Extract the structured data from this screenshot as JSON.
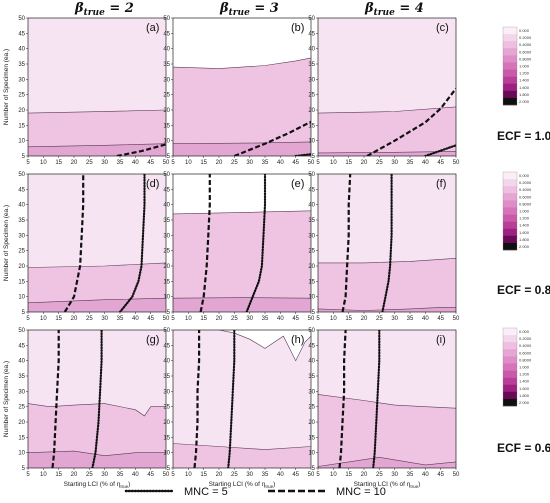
{
  "column_titles": [
    {
      "symbol": "β",
      "sub": "true",
      "eq": " = 2"
    },
    {
      "symbol": "β",
      "sub": "true",
      "eq": " = 3"
    },
    {
      "symbol": "β",
      "sub": "true",
      "eq": " = 4"
    }
  ],
  "row_labels": [
    "ECF = 1.0",
    "ECF = 0.8",
    "ECF = 0.6"
  ],
  "panel_letters": [
    "(a)",
    "(b)",
    "(c)",
    "(d)",
    "(e)",
    "(f)",
    "(g)",
    "(h)",
    "(i)"
  ],
  "axis_labels": {
    "ylabel": "Number of Specimen (ea.)",
    "xlabel_main": "Starting LCI (% of η",
    "xlabel_sub": "true",
    "xlabel_close": ")"
  },
  "x_ticks": [
    "5",
    "10",
    "15",
    "20",
    "25",
    "30",
    "35",
    "40",
    "45",
    "50"
  ],
  "y_ticks": [
    "5",
    "10",
    "15",
    "20",
    "25",
    "30",
    "35",
    "40",
    "45",
    "50"
  ],
  "colorbar_labels": [
    "0.000",
    "0.2000",
    "0.4000",
    "0.6000",
    "0.8000",
    "1.000",
    "1.200",
    "1.400",
    "1.600",
    "1.800",
    "2.000"
  ],
  "colorbar_colors": [
    "#fbeef8",
    "#f4d6ec",
    "#eebfe0",
    "#e6a6d4",
    "#de8dc7",
    "#d574ba",
    "#c95aaa",
    "#b83e98",
    "#9c2180",
    "#6a0a57",
    "#101010"
  ],
  "legend": [
    {
      "label": "MNC = 5",
      "style": "dotted"
    },
    {
      "label": "MNC = 10",
      "style": "dashed"
    }
  ],
  "chart_data": {
    "type": "contour",
    "layout": "3x3 grid",
    "x_range": [
      5,
      50
    ],
    "y_range": [
      5,
      50
    ],
    "panels": [
      {
        "letter": "(a)",
        "beta": 2,
        "ecf": 1.0,
        "contours": [
          [
            [
              5,
              19
            ],
            [
              25,
              19.4
            ],
            [
              50,
              20
            ]
          ],
          [
            [
              5,
              8
            ],
            [
              30,
              8.5
            ],
            [
              50,
              9
            ]
          ]
        ],
        "mnc5": [],
        "mnc10": [
          [
            34,
            5
          ],
          [
            42,
            6.6
          ],
          [
            50,
            8.8
          ]
        ]
      },
      {
        "letter": "(b)",
        "beta": 3,
        "ecf": 1.0,
        "contours": [
          [
            [
              5,
              34
            ],
            [
              20,
              33.5
            ],
            [
              35,
              34.5
            ],
            [
              45,
              36
            ],
            [
              50,
              37
            ]
          ],
          [
            [
              5,
              9
            ],
            [
              30,
              9.2
            ],
            [
              50,
              9.6
            ]
          ]
        ],
        "mnc5": [
          [
            45,
            5
          ],
          [
            50,
            5.6
          ]
        ],
        "mnc10": [
          [
            25,
            5
          ],
          [
            35,
            9
          ],
          [
            43,
            12.6
          ],
          [
            50,
            16.2
          ]
        ]
      },
      {
        "letter": "(c)",
        "beta": 4,
        "ecf": 1.0,
        "contours": [
          [
            [
              5,
              19
            ],
            [
              30,
              19.5
            ],
            [
              50,
              21
            ]
          ],
          [
            [
              5,
              6
            ],
            [
              30,
              6.2
            ],
            [
              50,
              6.5
            ]
          ]
        ],
        "mnc5": [
          [
            40,
            5
          ],
          [
            50,
            8.5
          ]
        ],
        "mnc10": [
          [
            21,
            5
          ],
          [
            30,
            10
          ],
          [
            40,
            16
          ],
          [
            45,
            20.5
          ],
          [
            50,
            27
          ]
        ]
      },
      {
        "letter": "(d)",
        "beta": 2,
        "ecf": 0.8,
        "contours": [
          [
            [
              5,
              19.5
            ],
            [
              30,
              20
            ],
            [
              50,
              21
            ]
          ],
          [
            [
              5,
              8
            ],
            [
              30,
              9
            ],
            [
              50,
              9.5
            ]
          ]
        ],
        "mnc5": [
          [
            35,
            5
          ],
          [
            39,
            10
          ],
          [
            41,
            15
          ],
          [
            42,
            20
          ],
          [
            42.5,
            30
          ],
          [
            43,
            40
          ],
          [
            43,
            50
          ]
        ],
        "mnc10": [
          [
            17,
            5
          ],
          [
            20,
            10
          ],
          [
            22,
            20
          ],
          [
            22.5,
            30
          ],
          [
            23,
            40
          ],
          [
            23,
            50
          ]
        ]
      },
      {
        "letter": "(e)",
        "beta": 3,
        "ecf": 0.8,
        "contours": [
          [
            [
              5,
              37
            ],
            [
              30,
              37.5
            ],
            [
              50,
              38
            ]
          ],
          [
            [
              5,
              9.5
            ],
            [
              30,
              9.7
            ],
            [
              50,
              9.5
            ]
          ]
        ],
        "mnc5": [
          [
            29,
            5
          ],
          [
            31,
            10
          ],
          [
            33,
            15
          ],
          [
            34,
            20
          ],
          [
            34.5,
            30
          ],
          [
            35,
            40
          ],
          [
            35,
            50
          ]
        ],
        "mnc10": [
          [
            14,
            5
          ],
          [
            15,
            10
          ],
          [
            16,
            20
          ],
          [
            16.5,
            30
          ],
          [
            17,
            40
          ],
          [
            17,
            50
          ]
        ]
      },
      {
        "letter": "(f)",
        "beta": 4,
        "ecf": 0.8,
        "contours": [
          [
            [
              5,
              21
            ],
            [
              20,
              21
            ],
            [
              35,
              21.5
            ],
            [
              50,
              22.5
            ]
          ],
          [
            [
              5,
              6
            ],
            [
              20,
              5.5
            ],
            [
              35,
              6
            ],
            [
              45,
              6.5
            ],
            [
              50,
              6.5
            ]
          ]
        ],
        "mnc5": [
          [
            26,
            5
          ],
          [
            27,
            10
          ],
          [
            28,
            15
          ],
          [
            28.5,
            20
          ],
          [
            29,
            30
          ],
          [
            29,
            40
          ],
          [
            29,
            50
          ]
        ],
        "mnc10": [
          [
            13,
            5
          ],
          [
            14,
            10
          ],
          [
            14.5,
            20
          ],
          [
            15,
            30
          ],
          [
            15,
            40
          ],
          [
            15.5,
            50
          ]
        ]
      },
      {
        "letter": "(g)",
        "beta": 2,
        "ecf": 0.6,
        "contours": [
          [
            [
              5,
              26
            ],
            [
              12,
              25
            ],
            [
              20,
              25.5
            ],
            [
              30,
              26
            ],
            [
              40,
              24
            ],
            [
              43,
              22
            ],
            [
              45,
              25
            ],
            [
              50,
              25
            ]
          ],
          [
            [
              5,
              10
            ],
            [
              20,
              10.5
            ],
            [
              30,
              9
            ],
            [
              40,
              10
            ],
            [
              50,
              10
            ]
          ]
        ],
        "mnc5": [
          [
            26,
            5
          ],
          [
            27,
            10
          ],
          [
            28,
            20
          ],
          [
            28.5,
            30
          ],
          [
            29,
            40
          ],
          [
            29,
            50
          ]
        ],
        "mnc10": [
          [
            13,
            5
          ],
          [
            13.5,
            10
          ],
          [
            14,
            20
          ],
          [
            14.5,
            30
          ],
          [
            15,
            40
          ],
          [
            15,
            50
          ]
        ]
      },
      {
        "letter": "(h)",
        "beta": 3,
        "ecf": 0.6,
        "contours": [
          [
            [
              5,
              13
            ],
            [
              20,
              12
            ],
            [
              35,
              11
            ],
            [
              50,
              12
            ]
          ],
          [
            [
              20,
              50
            ],
            [
              25,
              49
            ],
            [
              30,
              47
            ],
            [
              35,
              44
            ],
            [
              38,
              46
            ],
            [
              41,
              48
            ],
            [
              45,
              40
            ],
            [
              48,
              46
            ],
            [
              50,
              48
            ]
          ]
        ],
        "mnc5": [
          [
            23,
            5
          ],
          [
            23.5,
            10
          ],
          [
            24,
            20
          ],
          [
            24.5,
            30
          ],
          [
            25,
            40
          ],
          [
            25,
            50
          ]
        ],
        "mnc10": [
          [
            12,
            5
          ],
          [
            12.5,
            10
          ],
          [
            13,
            20
          ],
          [
            13,
            30
          ],
          [
            13.5,
            40
          ],
          [
            13.5,
            50
          ]
        ]
      },
      {
        "letter": "(i)",
        "beta": 4,
        "ecf": 0.6,
        "contours": [
          [
            [
              5,
              29
            ],
            [
              20,
              27
            ],
            [
              30,
              25.5
            ],
            [
              40,
              25
            ],
            [
              50,
              24.5
            ]
          ],
          [
            [
              5,
              5.5
            ],
            [
              15,
              7
            ],
            [
              25,
              8.5
            ],
            [
              40,
              6
            ],
            [
              50,
              7
            ]
          ]
        ],
        "mnc5": [
          [
            23,
            5
          ],
          [
            23.5,
            10
          ],
          [
            24,
            20
          ],
          [
            24.5,
            30
          ],
          [
            25,
            40
          ],
          [
            25,
            50
          ]
        ],
        "mnc10": [
          [
            12,
            5
          ],
          [
            12.5,
            10
          ],
          [
            13,
            20
          ],
          [
            13.5,
            30
          ],
          [
            13.5,
            40
          ],
          [
            14,
            50
          ]
        ]
      }
    ]
  }
}
